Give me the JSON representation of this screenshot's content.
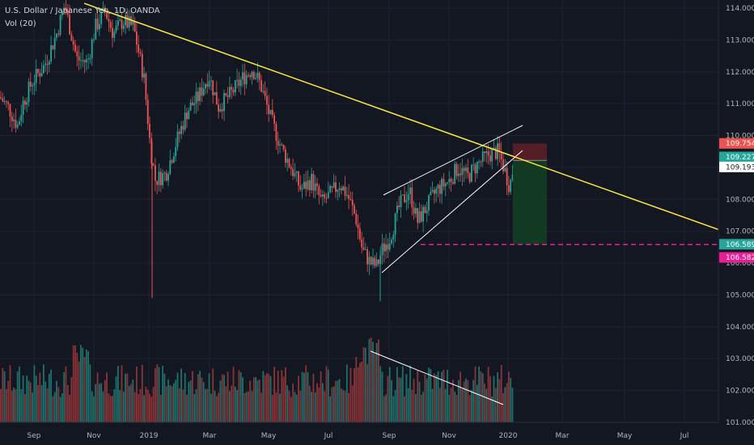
{
  "legend": {
    "symbol": "U.S. Dollar / Japanese Yen, 1D, OANDA",
    "indicator": "Vol (20)"
  },
  "colors": {
    "background": "#131722",
    "grid": "#1f2330",
    "up": "#26a69a",
    "down": "#ef5350",
    "vol_up": "#1f6f6a",
    "vol_down": "#8a3438",
    "trendline": "#ffeb3b",
    "channel": "#ffffff",
    "target": "#e91e96",
    "stop_zone": "#5c1f27",
    "profit_zone": "#133d22"
  },
  "chart_data": {
    "type": "candlestick",
    "price_axis": {
      "ylim": [
        101.0,
        114.2
      ],
      "ticks": [
        "114.000",
        "113.000",
        "112.000",
        "111.000",
        "110.000",
        "108.000",
        "107.000",
        "106.000",
        "105.000",
        "104.000",
        "103.000",
        "102.000",
        "101.000"
      ]
    },
    "time_axis": {
      "labels": [
        "Sep",
        "Nov",
        "2019",
        "Mar",
        "May",
        "Jul",
        "Sep",
        "Nov",
        "2020",
        "Mar",
        "May",
        "Jul"
      ]
    },
    "price_tags": [
      {
        "value": "109.754",
        "bg": "#ef5350",
        "fg": "#ffffff"
      },
      {
        "value": "109.227",
        "bg": "#26a69a",
        "fg": "#ffffff"
      },
      {
        "value": "109.193",
        "bg": "#ffffff",
        "fg": "#131722"
      },
      {
        "value": "106.589",
        "bg": "#26a69a",
        "fg": "#ffffff"
      },
      {
        "value": "106.582",
        "bg": "#e91e96",
        "fg": "#ffffff"
      }
    ],
    "annotations": {
      "downtrend_line": {
        "from": 114.15,
        "to": 107.05
      },
      "target_level": 106.58,
      "stop_level": 109.75,
      "entry_level": 109.22,
      "profit_level": 106.59
    },
    "series_range": {
      "start_price": 111.2,
      "end_price": 109.19
    }
  }
}
